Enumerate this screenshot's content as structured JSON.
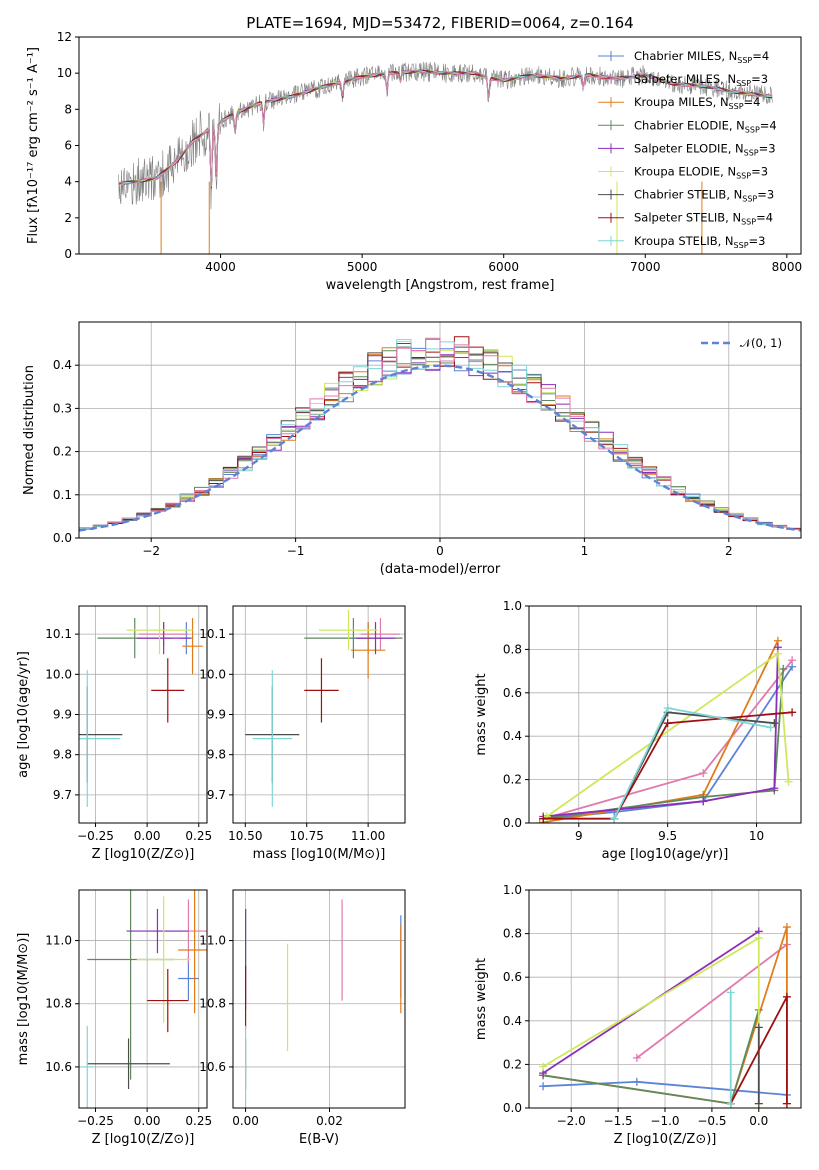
{
  "figure_title": "PLATE=1694, MJD=53472, FIBERID=0064, z=0.164",
  "colors": {
    "blue": "#5b84d6",
    "orange": "#e07d1a",
    "green": "#5e8a5e",
    "purple": "#8b2fb8",
    "yellow": "#cfe85a",
    "dark": "#4d4d4d",
    "red": "#a01010",
    "cyan": "#7fd6d6",
    "pink": "#e079ad",
    "gray": "#808080"
  },
  "chart_data": [
    {
      "id": "spectrum",
      "type": "line",
      "xlabel": "wavelength [Angstrom, rest frame]",
      "ylabel": "Flux [fλ10⁻¹⁷ erg cm⁻² s⁻¹ A⁻¹]",
      "xlim": [
        3000,
        8100
      ],
      "ylim": [
        0,
        12
      ],
      "xticks": [
        4000,
        5000,
        6000,
        7000,
        8000
      ],
      "yticks": [
        0,
        2,
        4,
        6,
        8,
        10,
        12
      ],
      "observed_continuum": {
        "x": [
          3280,
          3400,
          3550,
          3700,
          3800,
          3900,
          4000,
          4100,
          4300,
          4500,
          4700,
          4850,
          5000,
          5200,
          5400,
          5600,
          5800,
          5900,
          6000,
          6200,
          6400,
          6600,
          6800,
          7000,
          7200,
          7400,
          7600,
          7900
        ],
        "y": [
          3.9,
          4.0,
          4.2,
          5.2,
          6.2,
          6.8,
          7.3,
          7.8,
          8.4,
          8.7,
          9.2,
          9.5,
          9.8,
          10.0,
          10.1,
          10.0,
          10.0,
          9.7,
          9.6,
          9.9,
          9.7,
          9.9,
          9.7,
          9.9,
          9.4,
          9.3,
          9.0,
          8.7
        ]
      },
      "legend": [
        {
          "label": "Chabrier MILES",
          "n_ssp": "4",
          "color": "blue"
        },
        {
          "label": "Salpeter MILES",
          "n_ssp": "3",
          "color": "pink"
        },
        {
          "label": "Kroupa MILES",
          "n_ssp": "4",
          "color": "orange"
        },
        {
          "label": "Chabrier ELODIE",
          "n_ssp": "4",
          "color": "green"
        },
        {
          "label": "Salpeter ELODIE",
          "n_ssp": "3",
          "color": "purple"
        },
        {
          "label": "Kroupa ELODIE",
          "n_ssp": "3",
          "color": "yellow"
        },
        {
          "label": "Chabrier STELIB",
          "n_ssp": "3",
          "color": "dark"
        },
        {
          "label": "Salpeter STELIB",
          "n_ssp": "4",
          "color": "red"
        },
        {
          "label": "Kroupa STELIB",
          "n_ssp": "3",
          "color": "cyan"
        }
      ]
    },
    {
      "id": "residuals",
      "type": "line",
      "xlabel": "(data-model)/error",
      "ylabel": "Normed distribution",
      "xlim": [
        -2.5,
        2.5
      ],
      "ylim": [
        0,
        0.5
      ],
      "xticks": [
        -2,
        -1,
        0,
        1,
        2
      ],
      "yticks": [
        0.0,
        0.1,
        0.2,
        0.3,
        0.4
      ],
      "bin_width": 0.1,
      "legend": "𝒩(0, 1)",
      "series_colors": [
        "blue",
        "orange",
        "green",
        "purple",
        "yellow",
        "dark",
        "red",
        "cyan",
        "pink"
      ],
      "gaussian": {
        "mean": 0,
        "sigma": 1,
        "color": "blue"
      }
    },
    {
      "id": "age_vs_Z",
      "type": "scatter",
      "xlabel": "Z [log10(Z/Z⊙)]",
      "ylabel": "age  [log10(age/yr)]",
      "xlim": [
        -0.33,
        0.29
      ],
      "ylim": [
        9.63,
        10.17
      ],
      "xticks": [
        -0.25,
        0.0,
        0.25
      ],
      "xticklabels": [
        "−0.25",
        "0.00",
        "0.25"
      ],
      "yticks": [
        9.7,
        9.8,
        9.9,
        10.0,
        10.1
      ],
      "points": [
        {
          "color": "blue",
          "x": 0.19,
          "y": 10.09,
          "xerr": 0.03,
          "yerr": 0.04
        },
        {
          "color": "pink",
          "x": 0.08,
          "y": 10.1,
          "xerr": 0.12,
          "yerr": 0.03
        },
        {
          "color": "orange",
          "x": 0.22,
          "y": 10.07,
          "xerr": 0.05,
          "yerr": 0.07
        },
        {
          "color": "green",
          "x": -0.06,
          "y": 10.09,
          "xerr": 0.18,
          "yerr": 0.05
        },
        {
          "color": "purple",
          "x": 0.08,
          "y": 10.09,
          "xerr": 0.13,
          "yerr": 0.04
        },
        {
          "color": "yellow",
          "x": 0.06,
          "y": 10.11,
          "xerr": 0.16,
          "yerr": 0.06
        },
        {
          "color": "dark",
          "x": -0.29,
          "y": 9.85,
          "xerr": 0.17,
          "yerr": 0.12
        },
        {
          "color": "red",
          "x": 0.1,
          "y": 9.96,
          "xerr": 0.08,
          "yerr": 0.08
        },
        {
          "color": "cyan",
          "x": -0.29,
          "y": 9.84,
          "xerr": 0.16,
          "yerr": 0.17
        }
      ]
    },
    {
      "id": "age_vs_mass",
      "type": "scatter",
      "xlabel": "mass [log10(M/M⊙)]",
      "ylabel": "",
      "xlim": [
        10.45,
        11.15
      ],
      "ylim": [
        9.63,
        10.17
      ],
      "xticks": [
        10.5,
        10.75,
        11.0
      ],
      "xticklabels": [
        "10.50",
        "10.75",
        "11.00"
      ],
      "yticks": [
        9.7,
        9.8,
        9.9,
        10.0,
        10.1
      ],
      "points": [
        {
          "color": "blue",
          "x": 11.0,
          "y": 10.09,
          "xerr": 0.07,
          "yerr": 0.04
        },
        {
          "color": "pink",
          "x": 11.05,
          "y": 10.1,
          "xerr": 0.08,
          "yerr": 0.04
        },
        {
          "color": "orange",
          "x": 11.0,
          "y": 10.06,
          "xerr": 0.07,
          "yerr": 0.07
        },
        {
          "color": "green",
          "x": 10.94,
          "y": 10.09,
          "xerr": 0.2,
          "yerr": 0.05
        },
        {
          "color": "purple",
          "x": 11.03,
          "y": 10.09,
          "xerr": 0.08,
          "yerr": 0.04
        },
        {
          "color": "yellow",
          "x": 10.92,
          "y": 10.11,
          "xerr": 0.12,
          "yerr": 0.05
        },
        {
          "color": "dark",
          "x": 10.61,
          "y": 9.85,
          "xerr": 0.11,
          "yerr": 0.12
        },
        {
          "color": "red",
          "x": 10.81,
          "y": 9.96,
          "xerr": 0.07,
          "yerr": 0.08
        },
        {
          "color": "cyan",
          "x": 10.61,
          "y": 9.84,
          "xerr": 0.08,
          "yerr": 0.17
        }
      ]
    },
    {
      "id": "weight_vs_age",
      "type": "line",
      "xlabel": "age  [log10(age/yr)]",
      "ylabel": "mass weight",
      "xlim": [
        8.72,
        10.25
      ],
      "ylim": [
        0,
        1
      ],
      "xticks": [
        9.0,
        9.5,
        10.0
      ],
      "yticks": [
        0.0,
        0.2,
        0.4,
        0.6,
        0.8,
        1.0
      ],
      "series": [
        {
          "color": "blue",
          "x": [
            8.8,
            9.2,
            9.7,
            10.2
          ],
          "y": [
            0.02,
            0.05,
            0.1,
            0.72
          ]
        },
        {
          "color": "pink",
          "x": [
            8.8,
            9.7,
            10.2
          ],
          "y": [
            0.02,
            0.23,
            0.75
          ]
        },
        {
          "color": "orange",
          "x": [
            8.78,
            9.7,
            10.12
          ],
          "y": [
            0.0,
            0.13,
            0.84
          ]
        },
        {
          "color": "green",
          "x": [
            8.8,
            9.7,
            10.1,
            10.15
          ],
          "y": [
            0.02,
            0.12,
            0.15,
            0.71
          ]
        },
        {
          "color": "purple",
          "x": [
            8.8,
            9.7,
            10.1,
            10.12
          ],
          "y": [
            0.03,
            0.1,
            0.16,
            0.81
          ]
        },
        {
          "color": "yellow",
          "x": [
            8.82,
            10.12,
            10.18
          ],
          "y": [
            0.03,
            0.78,
            0.19
          ]
        },
        {
          "color": "dark",
          "x": [
            9.2,
            9.5,
            10.1
          ],
          "y": [
            0.02,
            0.51,
            0.46
          ]
        },
        {
          "color": "red",
          "x": [
            8.8,
            9.2,
            9.5,
            10.2
          ],
          "y": [
            0.02,
            0.02,
            0.46,
            0.51
          ]
        },
        {
          "color": "cyan",
          "x": [
            9.2,
            9.5,
            10.08
          ],
          "y": [
            0.02,
            0.53,
            0.44
          ]
        }
      ]
    },
    {
      "id": "mass_vs_Z",
      "type": "scatter",
      "xlabel": "Z [log10(Z/Z⊙)]",
      "ylabel": "mass [log10(M/M⊙)]",
      "xlim": [
        -0.33,
        0.29
      ],
      "ylim": [
        10.47,
        11.16
      ],
      "xticks": [
        -0.25,
        0.0,
        0.25
      ],
      "xticklabels": [
        "−0.25",
        "0.00",
        "0.25"
      ],
      "yticks": [
        10.6,
        10.8,
        11.0
      ],
      "points": [
        {
          "color": "blue",
          "x": 0.2,
          "y": 10.88,
          "xerr": 0.05,
          "yerr": 0.07
        },
        {
          "color": "pink",
          "x": 0.2,
          "y": 11.03,
          "xerr": 0.18,
          "yerr": 0.1
        },
        {
          "color": "orange",
          "x": 0.23,
          "y": 10.97,
          "xerr": 0.08,
          "yerr": 0.2
        },
        {
          "color": "green",
          "x": -0.08,
          "y": 10.94,
          "xerr": 0.21,
          "yerr": 0.38
        },
        {
          "color": "purple",
          "x": 0.05,
          "y": 11.03,
          "xerr": 0.15,
          "yerr": 0.07
        },
        {
          "color": "yellow",
          "x": 0.08,
          "y": 10.94,
          "xerr": 0.13,
          "yerr": 0.2
        },
        {
          "color": "dark",
          "x": -0.09,
          "y": 10.61,
          "xerr": 0.2,
          "yerr": 0.08
        },
        {
          "color": "red",
          "x": 0.1,
          "y": 10.81,
          "xerr": 0.1,
          "yerr": 0.1
        },
        {
          "color": "cyan",
          "x": -0.29,
          "y": 10.6,
          "xerr": 0.03,
          "yerr": 0.13
        }
      ]
    },
    {
      "id": "mass_vs_ebv",
      "type": "scatter",
      "xlabel": "E(B-V)",
      "ylabel": "",
      "xlim": [
        -0.003,
        0.038
      ],
      "ylim": [
        10.47,
        11.16
      ],
      "xticks": [
        0.0,
        0.02
      ],
      "xticklabels": [
        "0.00",
        "0.02"
      ],
      "yticks": [
        10.6,
        10.8,
        11.0
      ],
      "points": [
        {
          "color": "blue",
          "x": 0.037,
          "y": 10.95,
          "xerr": 0,
          "yerr": 0.13
        },
        {
          "color": "pink",
          "x": 0.023,
          "y": 10.97,
          "xerr": 0,
          "yerr": 0.16
        },
        {
          "color": "orange",
          "x": 0.037,
          "y": 10.91,
          "xerr": 0,
          "yerr": 0.14
        },
        {
          "color": "green",
          "x": 0.0,
          "y": 10.94,
          "xerr": 0,
          "yerr": 0.16
        },
        {
          "color": "purple",
          "x": 0.0,
          "y": 10.95,
          "xerr": 0,
          "yerr": 0.15
        },
        {
          "color": "yellow",
          "x": 0.01,
          "y": 10.82,
          "xerr": 0,
          "yerr": 0.17
        },
        {
          "color": "dark",
          "x": 0.0,
          "y": 10.61,
          "xerr": 0,
          "yerr": 0.08
        },
        {
          "color": "red",
          "x": 0.0,
          "y": 10.82,
          "xerr": 0,
          "yerr": 0.1
        },
        {
          "color": "cyan",
          "x": 0.0,
          "y": 10.6,
          "xerr": 0,
          "yerr": 0.13
        }
      ]
    },
    {
      "id": "weight_vs_Z",
      "type": "line",
      "xlabel": "Z [log10(Z/Z⊙)]",
      "ylabel": "mass weight",
      "xlim": [
        -2.45,
        0.45
      ],
      "ylim": [
        0,
        1
      ],
      "xticks": [
        -2.0,
        -1.5,
        -1.0,
        -0.5,
        0.0
      ],
      "xticklabels": [
        "−2.0",
        "−1.5",
        "−1.0",
        "−0.5",
        "0.0"
      ],
      "yticks": [
        0.0,
        0.2,
        0.4,
        0.6,
        0.8,
        1.0
      ],
      "series": [
        {
          "color": "blue",
          "x": [
            -2.3,
            -1.3,
            0.3
          ],
          "y": [
            0.1,
            0.12,
            0.06
          ]
        },
        {
          "color": "pink",
          "x": [
            -1.3,
            0.3
          ],
          "y": [
            0.23,
            0.75
          ]
        },
        {
          "color": "orange",
          "x": [
            -2.3,
            -0.3,
            0.3,
            0.3
          ],
          "y": [
            0.15,
            0.02,
            0.83,
            0.02
          ]
        },
        {
          "color": "green",
          "x": [
            -2.3,
            -0.3,
            0.0
          ],
          "y": [
            0.15,
            0.02,
            0.45
          ]
        },
        {
          "color": "purple",
          "x": [
            -2.3,
            0.0
          ],
          "y": [
            0.16,
            0.81
          ]
        },
        {
          "color": "yellow",
          "x": [
            -2.3,
            0.0,
            0.0
          ],
          "y": [
            0.19,
            0.78,
            0.02
          ]
        },
        {
          "color": "dark",
          "x": [
            0.0,
            0.0
          ],
          "y": [
            0.37,
            0.02
          ]
        },
        {
          "color": "red",
          "x": [
            -0.3,
            0.3,
            0.3
          ],
          "y": [
            0.02,
            0.51,
            0.02
          ]
        },
        {
          "color": "cyan",
          "x": [
            -0.3,
            -0.3
          ],
          "y": [
            0.53,
            0.02
          ]
        }
      ]
    }
  ]
}
